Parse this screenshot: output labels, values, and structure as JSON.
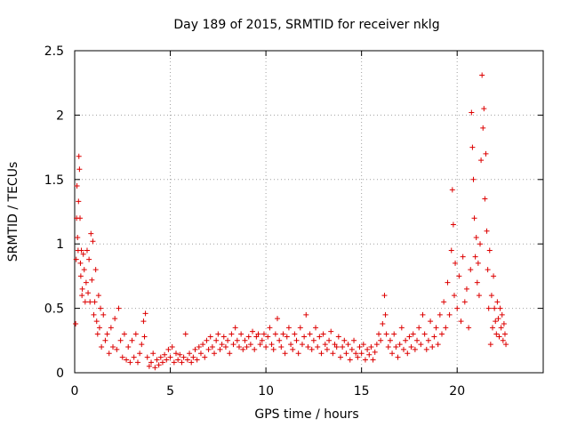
{
  "chart_data": {
    "type": "scatter",
    "title": "Day 189 of 2015, SRMTID for receiver nklg",
    "xlabel": "GPS time / hours",
    "ylabel": "SRMTID / TECUs",
    "xlim": [
      0,
      24.5
    ],
    "ylim": [
      0,
      2.5
    ],
    "xticks": [
      0,
      5,
      10,
      15,
      20
    ],
    "xtick_labels": [
      "0",
      "5",
      "10",
      "15",
      "20"
    ],
    "yticks": [
      0,
      0.5,
      1,
      1.5,
      2,
      2.5
    ],
    "ytick_labels": [
      "0",
      "0.5",
      "1",
      "1.5",
      "2",
      "2.5"
    ],
    "grid": true,
    "marker": "plus",
    "color": "#dd0000",
    "series": [
      {
        "name": "SRMTID",
        "points": [
          [
            0.05,
            0.38
          ],
          [
            0.08,
            0.88
          ],
          [
            0.1,
            1.2
          ],
          [
            0.12,
            1.45
          ],
          [
            0.15,
            1.05
          ],
          [
            0.18,
            0.95
          ],
          [
            0.2,
            1.33
          ],
          [
            0.22,
            1.68
          ],
          [
            0.25,
            1.58
          ],
          [
            0.28,
            1.2
          ],
          [
            0.3,
            0.85
          ],
          [
            0.32,
            0.75
          ],
          [
            0.35,
            0.95
          ],
          [
            0.38,
            0.6
          ],
          [
            0.4,
            0.65
          ],
          [
            0.45,
            0.92
          ],
          [
            0.5,
            0.8
          ],
          [
            0.55,
            0.55
          ],
          [
            0.6,
            0.7
          ],
          [
            0.65,
            0.95
          ],
          [
            0.7,
            0.62
          ],
          [
            0.75,
            0.88
          ],
          [
            0.8,
            0.55
          ],
          [
            0.85,
            1.08
          ],
          [
            0.9,
            0.72
          ],
          [
            0.95,
            1.02
          ],
          [
            1.0,
            0.45
          ],
          [
            1.05,
            0.55
          ],
          [
            1.1,
            0.8
          ],
          [
            1.15,
            0.4
          ],
          [
            1.2,
            0.3
          ],
          [
            1.25,
            0.6
          ],
          [
            1.3,
            0.35
          ],
          [
            1.35,
            0.5
          ],
          [
            1.4,
            0.2
          ],
          [
            1.5,
            0.45
          ],
          [
            1.6,
            0.25
          ],
          [
            1.7,
            0.3
          ],
          [
            1.8,
            0.15
          ],
          [
            1.9,
            0.35
          ],
          [
            2.0,
            0.2
          ],
          [
            2.1,
            0.42
          ],
          [
            2.2,
            0.18
          ],
          [
            2.3,
            0.5
          ],
          [
            2.4,
            0.25
          ],
          [
            2.5,
            0.12
          ],
          [
            2.6,
            0.3
          ],
          [
            2.7,
            0.1
          ],
          [
            2.8,
            0.2
          ],
          [
            2.9,
            0.08
          ],
          [
            3.0,
            0.25
          ],
          [
            3.1,
            0.12
          ],
          [
            3.2,
            0.3
          ],
          [
            3.3,
            0.08
          ],
          [
            3.4,
            0.15
          ],
          [
            3.5,
            0.22
          ],
          [
            3.6,
            0.4
          ],
          [
            3.65,
            0.28
          ],
          [
            3.7,
            0.46
          ],
          [
            3.8,
            0.12
          ],
          [
            3.9,
            0.05
          ],
          [
            4.0,
            0.08
          ],
          [
            4.1,
            0.15
          ],
          [
            4.2,
            0.04
          ],
          [
            4.3,
            0.1
          ],
          [
            4.4,
            0.06
          ],
          [
            4.5,
            0.12
          ],
          [
            4.6,
            0.08
          ],
          [
            4.7,
            0.14
          ],
          [
            4.8,
            0.1
          ],
          [
            4.9,
            0.18
          ],
          [
            5.0,
            0.12
          ],
          [
            5.1,
            0.2
          ],
          [
            5.2,
            0.08
          ],
          [
            5.3,
            0.15
          ],
          [
            5.4,
            0.1
          ],
          [
            5.5,
            0.14
          ],
          [
            5.6,
            0.08
          ],
          [
            5.7,
            0.12
          ],
          [
            5.8,
            0.3
          ],
          [
            5.9,
            0.1
          ],
          [
            6.0,
            0.15
          ],
          [
            6.1,
            0.08
          ],
          [
            6.2,
            0.12
          ],
          [
            6.3,
            0.18
          ],
          [
            6.4,
            0.1
          ],
          [
            6.5,
            0.2
          ],
          [
            6.6,
            0.15
          ],
          [
            6.7,
            0.22
          ],
          [
            6.8,
            0.12
          ],
          [
            6.9,
            0.25
          ],
          [
            7.0,
            0.18
          ],
          [
            7.1,
            0.28
          ],
          [
            7.2,
            0.2
          ],
          [
            7.3,
            0.15
          ],
          [
            7.4,
            0.25
          ],
          [
            7.5,
            0.3
          ],
          [
            7.6,
            0.18
          ],
          [
            7.7,
            0.22
          ],
          [
            7.8,
            0.28
          ],
          [
            7.9,
            0.2
          ],
          [
            8.0,
            0.25
          ],
          [
            8.1,
            0.15
          ],
          [
            8.2,
            0.3
          ],
          [
            8.3,
            0.22
          ],
          [
            8.4,
            0.35
          ],
          [
            8.5,
            0.25
          ],
          [
            8.6,
            0.2
          ],
          [
            8.7,
            0.3
          ],
          [
            8.8,
            0.18
          ],
          [
            8.9,
            0.25
          ],
          [
            9.0,
            0.2
          ],
          [
            9.1,
            0.28
          ],
          [
            9.2,
            0.22
          ],
          [
            9.3,
            0.32
          ],
          [
            9.4,
            0.18
          ],
          [
            9.5,
            0.28
          ],
          [
            9.6,
            0.3
          ],
          [
            9.7,
            0.22
          ],
          [
            9.8,
            0.25
          ],
          [
            9.9,
            0.3
          ],
          [
            10.0,
            0.2
          ],
          [
            10.1,
            0.28
          ],
          [
            10.2,
            0.35
          ],
          [
            10.3,
            0.22
          ],
          [
            10.4,
            0.18
          ],
          [
            10.5,
            0.3
          ],
          [
            10.6,
            0.42
          ],
          [
            10.7,
            0.25
          ],
          [
            10.8,
            0.2
          ],
          [
            10.9,
            0.3
          ],
          [
            11.0,
            0.15
          ],
          [
            11.1,
            0.28
          ],
          [
            11.2,
            0.35
          ],
          [
            11.3,
            0.22
          ],
          [
            11.4,
            0.18
          ],
          [
            11.5,
            0.3
          ],
          [
            11.6,
            0.25
          ],
          [
            11.7,
            0.15
          ],
          [
            11.8,
            0.35
          ],
          [
            11.9,
            0.22
          ],
          [
            12.0,
            0.28
          ],
          [
            12.1,
            0.45
          ],
          [
            12.2,
            0.2
          ],
          [
            12.3,
            0.3
          ],
          [
            12.4,
            0.18
          ],
          [
            12.5,
            0.25
          ],
          [
            12.6,
            0.35
          ],
          [
            12.7,
            0.2
          ],
          [
            12.8,
            0.28
          ],
          [
            12.9,
            0.15
          ],
          [
            13.0,
            0.3
          ],
          [
            13.1,
            0.22
          ],
          [
            13.2,
            0.18
          ],
          [
            13.3,
            0.25
          ],
          [
            13.4,
            0.32
          ],
          [
            13.5,
            0.15
          ],
          [
            13.6,
            0.22
          ],
          [
            13.7,
            0.2
          ],
          [
            13.8,
            0.28
          ],
          [
            13.9,
            0.12
          ],
          [
            14.0,
            0.2
          ],
          [
            14.1,
            0.25
          ],
          [
            14.2,
            0.15
          ],
          [
            14.3,
            0.22
          ],
          [
            14.4,
            0.1
          ],
          [
            14.5,
            0.18
          ],
          [
            14.6,
            0.25
          ],
          [
            14.7,
            0.15
          ],
          [
            14.8,
            0.12
          ],
          [
            14.9,
            0.2
          ],
          [
            15.0,
            0.15
          ],
          [
            15.1,
            0.22
          ],
          [
            15.2,
            0.1
          ],
          [
            15.3,
            0.18
          ],
          [
            15.4,
            0.14
          ],
          [
            15.5,
            0.2
          ],
          [
            15.6,
            0.1
          ],
          [
            15.7,
            0.16
          ],
          [
            15.8,
            0.22
          ],
          [
            15.9,
            0.3
          ],
          [
            16.0,
            0.25
          ],
          [
            16.1,
            0.38
          ],
          [
            16.2,
            0.6
          ],
          [
            16.25,
            0.45
          ],
          [
            16.3,
            0.3
          ],
          [
            16.4,
            0.2
          ],
          [
            16.5,
            0.25
          ],
          [
            16.6,
            0.15
          ],
          [
            16.7,
            0.3
          ],
          [
            16.8,
            0.2
          ],
          [
            16.9,
            0.12
          ],
          [
            17.0,
            0.22
          ],
          [
            17.1,
            0.35
          ],
          [
            17.2,
            0.18
          ],
          [
            17.3,
            0.25
          ],
          [
            17.4,
            0.15
          ],
          [
            17.5,
            0.28
          ],
          [
            17.6,
            0.2
          ],
          [
            17.7,
            0.3
          ],
          [
            17.8,
            0.18
          ],
          [
            17.9,
            0.25
          ],
          [
            18.0,
            0.35
          ],
          [
            18.1,
            0.22
          ],
          [
            18.2,
            0.45
          ],
          [
            18.3,
            0.3
          ],
          [
            18.4,
            0.18
          ],
          [
            18.5,
            0.25
          ],
          [
            18.6,
            0.4
          ],
          [
            18.7,
            0.2
          ],
          [
            18.8,
            0.28
          ],
          [
            18.9,
            0.35
          ],
          [
            19.0,
            0.22
          ],
          [
            19.1,
            0.45
          ],
          [
            19.2,
            0.3
          ],
          [
            19.3,
            0.55
          ],
          [
            19.4,
            0.35
          ],
          [
            19.5,
            0.7
          ],
          [
            19.6,
            0.45
          ],
          [
            19.7,
            0.95
          ],
          [
            19.75,
            1.42
          ],
          [
            19.8,
            1.15
          ],
          [
            19.85,
            0.6
          ],
          [
            19.9,
            0.85
          ],
          [
            20.0,
            0.5
          ],
          [
            20.1,
            0.75
          ],
          [
            20.2,
            0.4
          ],
          [
            20.3,
            0.9
          ],
          [
            20.4,
            0.55
          ],
          [
            20.5,
            0.65
          ],
          [
            20.6,
            0.35
          ],
          [
            20.7,
            0.8
          ],
          [
            20.75,
            2.02
          ],
          [
            20.8,
            1.75
          ],
          [
            20.85,
            1.5
          ],
          [
            20.9,
            1.2
          ],
          [
            20.95,
            0.9
          ],
          [
            21.0,
            1.05
          ],
          [
            21.05,
            0.7
          ],
          [
            21.1,
            0.85
          ],
          [
            21.15,
            0.6
          ],
          [
            21.2,
            1.0
          ],
          [
            21.25,
            1.65
          ],
          [
            21.3,
            2.31
          ],
          [
            21.35,
            1.9
          ],
          [
            21.4,
            2.05
          ],
          [
            21.45,
            1.35
          ],
          [
            21.5,
            1.7
          ],
          [
            21.55,
            1.1
          ],
          [
            21.6,
            0.8
          ],
          [
            21.65,
            0.5
          ],
          [
            21.7,
            0.95
          ],
          [
            21.75,
            0.22
          ],
          [
            21.8,
            0.6
          ],
          [
            21.85,
            0.35
          ],
          [
            21.9,
            0.75
          ],
          [
            21.95,
            0.5
          ],
          [
            22.0,
            0.4
          ],
          [
            22.05,
            0.3
          ],
          [
            22.1,
            0.55
          ],
          [
            22.15,
            0.42
          ],
          [
            22.2,
            0.28
          ],
          [
            22.25,
            0.5
          ],
          [
            22.3,
            0.35
          ],
          [
            22.35,
            0.45
          ],
          [
            22.4,
            0.25
          ],
          [
            22.45,
            0.38
          ],
          [
            22.5,
            0.3
          ],
          [
            22.55,
            0.22
          ]
        ]
      }
    ]
  }
}
